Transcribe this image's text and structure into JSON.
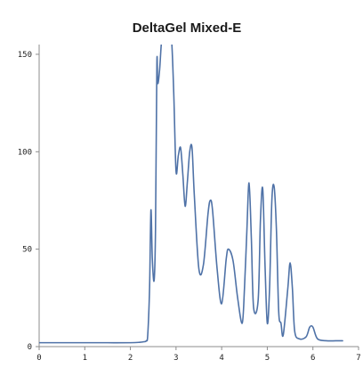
{
  "chart_data": {
    "type": "line",
    "title": "DeltaGel Mixed-E",
    "xlabel": "",
    "ylabel": "",
    "xlim": [
      0,
      7
    ],
    "ylim": [
      0,
      155
    ],
    "x_ticks": [
      0,
      1,
      2,
      3,
      4,
      5,
      6,
      7
    ],
    "y_ticks": [
      0,
      50,
      100,
      150
    ],
    "grid": false,
    "legend": "none",
    "colors": {
      "series": "#4f72a7",
      "axis": "#8c8c8c",
      "text": "#1a1a1a"
    },
    "series": [
      {
        "x": [
          0.0,
          0.5,
          1.0,
          1.5,
          2.0,
          2.2,
          2.3,
          2.35,
          2.38,
          2.42,
          2.45,
          2.48,
          2.52,
          2.55,
          2.58,
          2.6,
          2.64,
          2.68,
          2.72,
          2.78,
          2.84,
          2.9,
          2.95,
          3.0,
          3.05,
          3.1,
          3.15,
          3.2,
          3.25,
          3.3,
          3.35,
          3.4,
          3.5,
          3.6,
          3.7,
          3.75,
          3.8,
          3.9,
          4.0,
          4.1,
          4.15,
          4.25,
          4.35,
          4.45,
          4.5,
          4.55,
          4.6,
          4.65,
          4.7,
          4.8,
          4.85,
          4.9,
          4.95,
          5.0,
          5.05,
          5.1,
          5.15,
          5.2,
          5.25,
          5.3,
          5.35,
          5.45,
          5.5,
          5.55,
          5.6,
          5.7,
          5.85,
          5.93,
          6.0,
          6.1,
          6.3,
          6.5,
          6.65
        ],
        "y": [
          2,
          2,
          2,
          2,
          2,
          2.2,
          2.5,
          3,
          6,
          30,
          70,
          45,
          34,
          60,
          145,
          135,
          142,
          156,
          160,
          160,
          158,
          158,
          130,
          90,
          98,
          102,
          88,
          72,
          85,
          100,
          102,
          78,
          40,
          42,
          68,
          75,
          70,
          40,
          22,
          45,
          50,
          44,
          25,
          12,
          30,
          58,
          84,
          56,
          20,
          24,
          65,
          81,
          42,
          12,
          30,
          75,
          82,
          60,
          18,
          12,
          6,
          30,
          43,
          30,
          8,
          4,
          5,
          10,
          10,
          4,
          3,
          3,
          3
        ]
      }
    ]
  }
}
